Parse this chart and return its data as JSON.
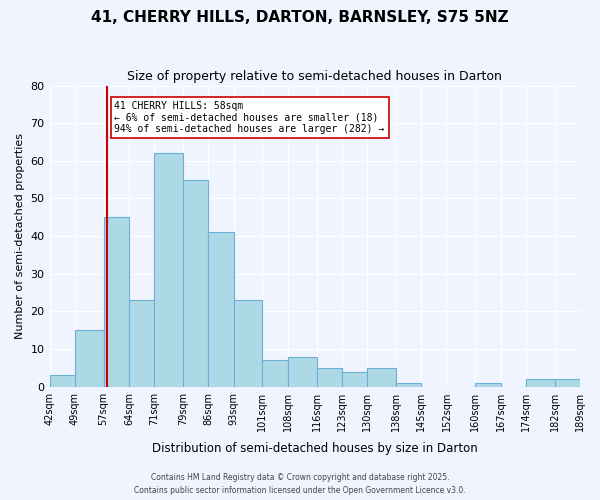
{
  "title": "41, CHERRY HILLS, DARTON, BARNSLEY, S75 5NZ",
  "subtitle": "Size of property relative to semi-detached houses in Darton",
  "xlabel": "Distribution of semi-detached houses by size in Darton",
  "ylabel": "Number of semi-detached properties",
  "bin_labels": [
    "42sqm",
    "49sqm",
    "57sqm",
    "64sqm",
    "71sqm",
    "79sqm",
    "86sqm",
    "93sqm",
    "101sqm",
    "108sqm",
    "116sqm",
    "123sqm",
    "130sqm",
    "138sqm",
    "145sqm",
    "152sqm",
    "160sqm",
    "167sqm",
    "174sqm",
    "182sqm",
    "189sqm"
  ],
  "bin_edges": [
    42,
    49,
    57,
    64,
    71,
    79,
    86,
    93,
    101,
    108,
    116,
    123,
    130,
    138,
    145,
    152,
    160,
    167,
    174,
    182,
    189
  ],
  "bar_heights": [
    3,
    15,
    45,
    23,
    62,
    55,
    41,
    23,
    7,
    8,
    5,
    4,
    5,
    1,
    0,
    0,
    1,
    0,
    2,
    2
  ],
  "bar_color": "#add8e6",
  "bar_edge_color": "#6baed6",
  "property_value": 58,
  "property_line_color": "#cc0000",
  "annotation_text": "41 CHERRY HILLS: 58sqm\n← 6% of semi-detached houses are smaller (18)\n94% of semi-detached houses are larger (282) →",
  "annotation_box_color": "#ffffff",
  "annotation_box_edge_color": "#cc0000",
  "ylim": [
    0,
    80
  ],
  "yticks": [
    0,
    10,
    20,
    30,
    40,
    50,
    60,
    70,
    80
  ],
  "background_color": "#f0f4ff",
  "footer_line1": "Contains HM Land Registry data © Crown copyright and database right 2025.",
  "footer_line2": "Contains public sector information licensed under the Open Government Licence v3.0."
}
